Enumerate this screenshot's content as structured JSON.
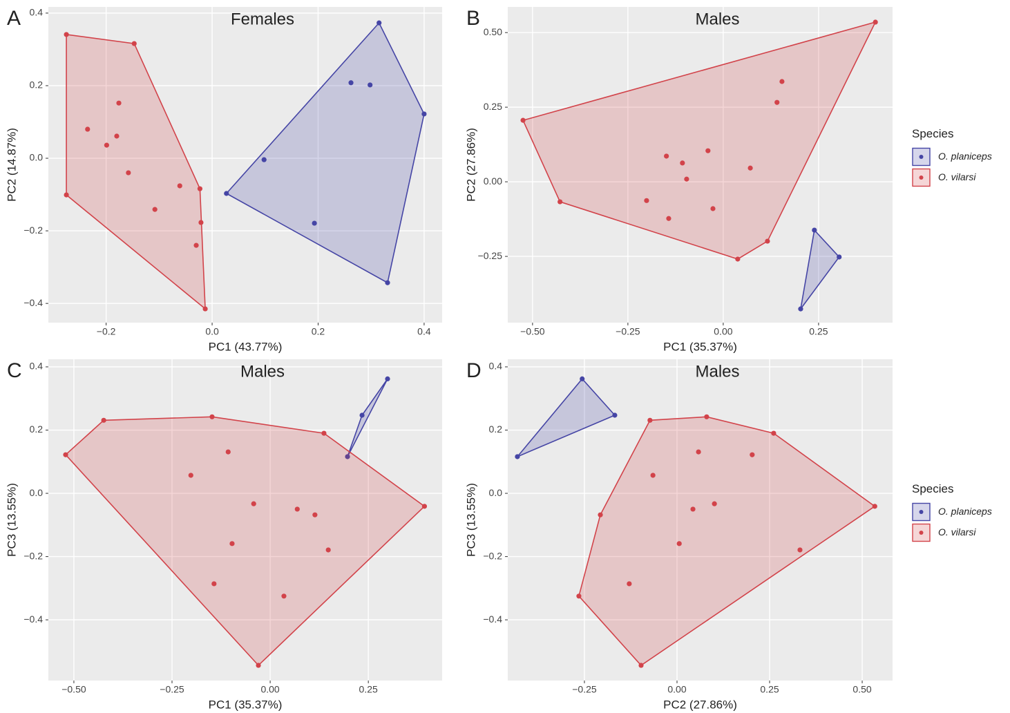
{
  "chart_data": [
    {
      "type": "scatter",
      "label": "A",
      "title": "Females",
      "x_label": "PC1 (43.77%)",
      "y_label": "PC2 (14.87%)",
      "xlim": [
        -0.309,
        0.434
      ],
      "ylim": [
        -0.453,
        0.417
      ],
      "xticks": [
        {
          "value": -0.2,
          "label": "−0.2"
        },
        {
          "value": 0,
          "label": "0.0"
        },
        0.2,
        0.4
      ],
      "yticks": [
        {
          "value": -0.4,
          "label": "−0.4"
        },
        {
          "value": -0.2,
          "label": "−0.2"
        },
        {
          "value": 0,
          "label": "0.0"
        },
        0.2,
        0.4
      ],
      "grid": true,
      "series": [
        {
          "name": "O. planiceps",
          "color": "#4545a5",
          "x": [
            0.315,
            0.4,
            0.262,
            0.298,
            0.098,
            0.027,
            0.193,
            0.331
          ],
          "values": [
            0.373,
            0.122,
            0.208,
            0.202,
            -0.004,
            -0.097,
            -0.179,
            -0.343
          ]
        },
        {
          "name": "O. vilarsi",
          "color": "#d2434a",
          "x": [
            -0.275,
            -0.147,
            -0.235,
            -0.176,
            -0.18,
            -0.199,
            -0.158,
            -0.061,
            -0.023,
            -0.021,
            -0.108,
            -0.03,
            -0.013,
            -0.275
          ],
          "values": [
            0.341,
            0.316,
            0.08,
            0.152,
            0.061,
            0.036,
            -0.04,
            -0.076,
            -0.084,
            -0.177,
            -0.141,
            -0.24,
            -0.415,
            -0.101
          ]
        }
      ]
    },
    {
      "type": "scatter",
      "label": "B",
      "title": "Males",
      "x_label": "PC1 (35.37%)",
      "y_label": "PC2 (27.86%)",
      "xlim": [
        -0.565,
        0.444
      ],
      "ylim": [
        -0.472,
        0.586
      ],
      "xticks": [
        {
          "value": -0.5,
          "label": "−0.50"
        },
        {
          "value": -0.25,
          "label": "−0.25"
        },
        {
          "value": 0,
          "label": "0.00"
        },
        0.25
      ],
      "yticks": [
        {
          "value": -0.25,
          "label": "−0.25"
        },
        {
          "value": 0,
          "label": "0.00"
        },
        0.25,
        {
          "value": 0.5,
          "label": "0.50"
        }
      ],
      "grid": true,
      "legend": "right",
      "legend_title": "Species",
      "series": [
        {
          "name": "O. planiceps",
          "color": "#4545a5",
          "x": [
            0.239,
            0.304,
            0.203
          ],
          "values": [
            -0.162,
            -0.252,
            -0.426
          ]
        },
        {
          "name": "O. vilarsi",
          "color": "#d2434a",
          "x": [
            0.399,
            -0.525,
            -0.428,
            0.038,
            0.116,
            0.154,
            0.141,
            -0.149,
            -0.107,
            -0.04,
            -0.096,
            0.071,
            -0.201,
            -0.143,
            -0.027
          ],
          "values": [
            0.535,
            0.206,
            -0.067,
            -0.259,
            -0.199,
            0.336,
            0.266,
            0.086,
            0.063,
            0.104,
            0.009,
            0.046,
            -0.063,
            -0.123,
            -0.09
          ]
        }
      ]
    },
    {
      "type": "scatter",
      "label": "C",
      "title": "Males",
      "x_label": "PC1 (35.37%)",
      "y_label": "PC3 (13.55%)",
      "xlim": [
        -0.565,
        0.438
      ],
      "ylim": [
        -0.592,
        0.424
      ],
      "xticks": [
        {
          "value": -0.5,
          "label": "−0.50"
        },
        {
          "value": -0.25,
          "label": "−0.25"
        },
        {
          "value": 0,
          "label": "0.00"
        },
        0.25
      ],
      "yticks": [
        {
          "value": -0.4,
          "label": "−0.4"
        },
        {
          "value": -0.2,
          "label": "−0.2"
        },
        {
          "value": 0,
          "label": "0.0"
        },
        0.2,
        0.4
      ],
      "grid": true,
      "series": [
        {
          "name": "O. planiceps",
          "color": "#4545a5",
          "x": [
            0.299,
            0.234,
            0.197
          ],
          "values": [
            0.362,
            0.247,
            0.116
          ]
        },
        {
          "name": "O. vilarsi",
          "color": "#d2434a",
          "x": [
            -0.521,
            -0.424,
            -0.148,
            0.137,
            0.393,
            -0.03,
            -0.107,
            -0.202,
            -0.042,
            0.069,
            0.114,
            -0.097,
            0.148,
            -0.143,
            0.035
          ],
          "values": [
            0.122,
            0.231,
            0.242,
            0.19,
            -0.041,
            -0.544,
            0.131,
            0.057,
            -0.033,
            -0.05,
            -0.068,
            -0.159,
            -0.179,
            -0.286,
            -0.325
          ]
        }
      ]
    },
    {
      "type": "scatter",
      "label": "D",
      "title": "Males",
      "x_label": "PC2 (27.86%)",
      "y_label": "PC3 (13.55%)",
      "xlim": [
        -0.457,
        0.582
      ],
      "ylim": [
        -0.592,
        0.424
      ],
      "xticks": [
        {
          "value": -0.25,
          "label": "−0.25"
        },
        {
          "value": 0,
          "label": "0.00"
        },
        0.25,
        {
          "value": 0.5,
          "label": "0.50"
        }
      ],
      "yticks": [
        {
          "value": -0.4,
          "label": "−0.4"
        },
        {
          "value": -0.2,
          "label": "−0.2"
        },
        {
          "value": 0,
          "label": "0.0"
        },
        0.2,
        0.4
      ],
      "grid": true,
      "legend": "right",
      "legend_title": "Species",
      "series": [
        {
          "name": "O. planiceps",
          "color": "#4545a5",
          "x": [
            -0.256,
            -0.168,
            -0.431
          ],
          "values": [
            0.362,
            0.247,
            0.116
          ]
        },
        {
          "name": "O. vilarsi",
          "color": "#d2434a",
          "x": [
            -0.073,
            0.08,
            0.261,
            0.534,
            -0.097,
            -0.265,
            -0.207,
            -0.065,
            0.058,
            0.203,
            0.043,
            0.101,
            0.006,
            -0.129,
            0.332
          ],
          "values": [
            0.231,
            0.242,
            0.19,
            -0.041,
            -0.544,
            -0.325,
            -0.068,
            0.057,
            0.131,
            0.122,
            -0.05,
            -0.033,
            -0.159,
            -0.286,
            -0.179
          ]
        }
      ]
    }
  ]
}
